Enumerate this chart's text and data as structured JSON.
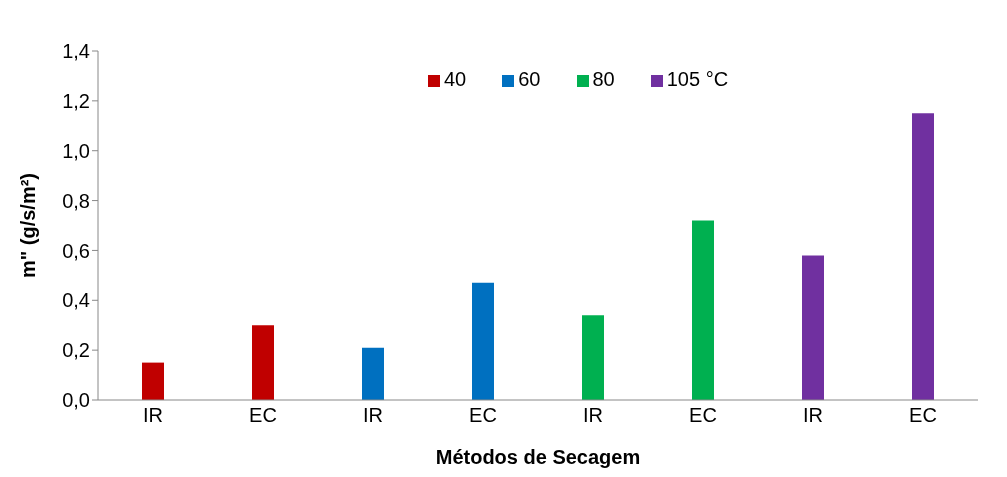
{
  "chart_data": {
    "type": "bar",
    "xlabel": "Métodos de Secagem",
    "ylabel": "m\" (g/s/m²)",
    "categories": [
      "IR",
      "EC",
      "IR",
      "EC",
      "IR",
      "EC",
      "IR",
      "EC"
    ],
    "series": [
      {
        "name": "40",
        "color": "#c00000",
        "values": [
          0.15,
          0.3,
          null,
          null,
          null,
          null,
          null,
          null
        ]
      },
      {
        "name": "60",
        "color": "#0070c0",
        "values": [
          null,
          null,
          0.21,
          0.47,
          null,
          null,
          null,
          null
        ]
      },
      {
        "name": "80",
        "color": "#00b050",
        "values": [
          null,
          null,
          null,
          null,
          0.34,
          0.72,
          null,
          null
        ]
      },
      {
        "name": "105 °C",
        "color": "#7030a0",
        "values": [
          null,
          null,
          null,
          null,
          null,
          null,
          0.58,
          1.15
        ]
      }
    ],
    "ylim": [
      0,
      1.4
    ],
    "yticks": [
      {
        "value": 0,
        "label": "0,0"
      },
      {
        "value": 0.2,
        "label": "0,2"
      },
      {
        "value": 0.4,
        "label": "0,4"
      },
      {
        "value": 0.6,
        "label": "0,6"
      },
      {
        "value": 0.8,
        "label": "0,8"
      },
      {
        "value": 1.0,
        "label": "1,0"
      },
      {
        "value": 1.2,
        "label": "1,2"
      },
      {
        "value": 1.4,
        "label": "1,4"
      }
    ],
    "grid": false,
    "legend": "top right"
  }
}
